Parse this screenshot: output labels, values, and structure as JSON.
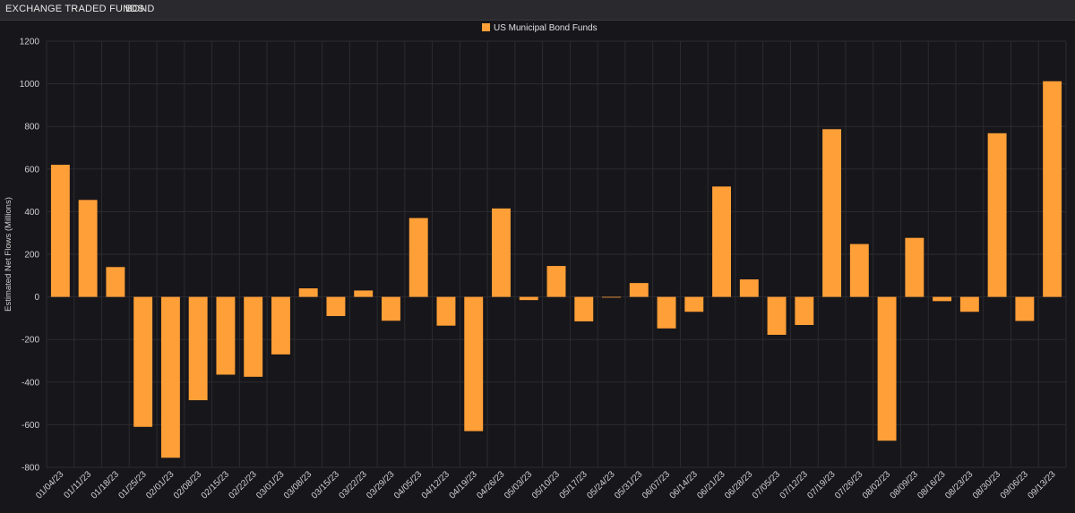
{
  "header": {
    "section": "EXCHANGE TRADED FUNDS",
    "category": "BOND"
  },
  "chart_data": {
    "type": "bar",
    "ylabel": "Estimated Net Flows (Millions)",
    "ylim": [
      -800,
      1200
    ],
    "yticks": [
      -800,
      -600,
      -400,
      -200,
      0,
      200,
      400,
      600,
      800,
      1000,
      1200
    ],
    "grid": true,
    "legend_position": "top-center",
    "categories": [
      "01/04/23",
      "01/11/23",
      "01/18/23",
      "01/25/23",
      "02/01/23",
      "02/08/23",
      "02/15/23",
      "02/22/23",
      "03/01/23",
      "03/08/23",
      "03/15/23",
      "03/22/23",
      "03/29/23",
      "04/05/23",
      "04/12/23",
      "04/19/23",
      "04/26/23",
      "05/03/23",
      "05/10/23",
      "05/17/23",
      "05/24/23",
      "05/31/23",
      "06/07/23",
      "06/14/23",
      "06/21/23",
      "06/28/23",
      "07/05/23",
      "07/12/23",
      "07/19/23",
      "07/26/23",
      "08/02/23",
      "08/09/23",
      "08/16/23",
      "08/23/23",
      "08/30/23",
      "09/06/23",
      "09/13/23"
    ],
    "series": [
      {
        "name": "US Municipal Bond Funds",
        "color": "#ff9f37",
        "values": [
          620,
          455,
          140,
          -610,
          -755,
          -485,
          -365,
          -375,
          -270,
          40,
          -90,
          30,
          -112,
          370,
          -135,
          -630,
          415,
          -15,
          145,
          -115,
          -3,
          65,
          -148,
          -70,
          518,
          82,
          -178,
          -132,
          787,
          248,
          -675,
          277,
          -20,
          -70,
          768,
          -113,
          1012
        ]
      }
    ]
  }
}
